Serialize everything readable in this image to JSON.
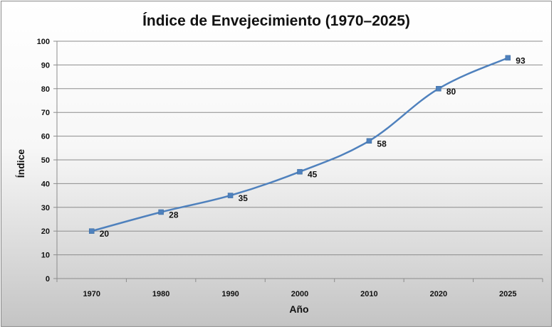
{
  "chart_data": {
    "type": "line",
    "title": "Índice de Envejecimiento (1970–2025)",
    "xlabel": "Año",
    "ylabel": "Índice",
    "categories": [
      "1970",
      "1980",
      "1990",
      "2000",
      "2010",
      "2020",
      "2025"
    ],
    "series": [
      {
        "values": [
          20,
          28,
          35,
          45,
          58,
          80,
          93
        ],
        "color": "#4f81bd"
      }
    ],
    "data_labels": [
      "20",
      "28",
      "35",
      "45",
      "58",
      "80",
      "93"
    ],
    "ylim": [
      0,
      100
    ],
    "yticks": [
      "0",
      "10",
      "20",
      "30",
      "40",
      "50",
      "60",
      "70",
      "80",
      "90",
      "100"
    ],
    "grid": true,
    "legend": "none"
  }
}
